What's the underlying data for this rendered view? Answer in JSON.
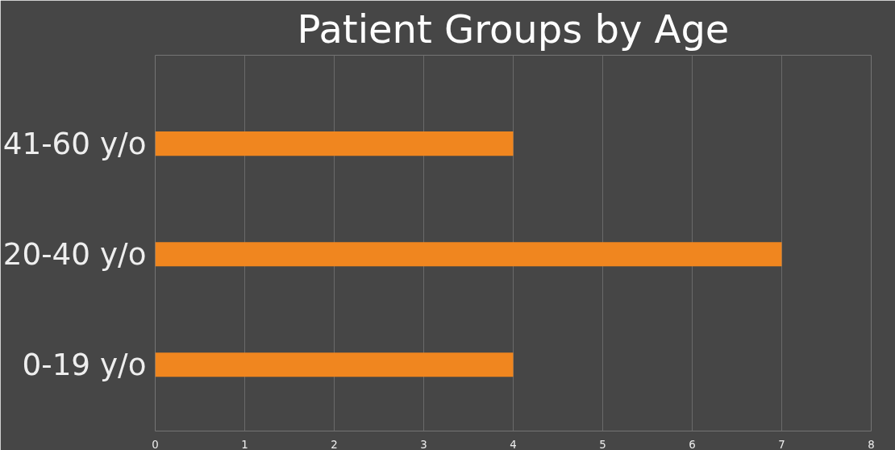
{
  "chart_data": {
    "type": "bar",
    "orientation": "horizontal",
    "title": "Patient Groups by Age",
    "categories": [
      "41-60 y/o",
      "20-40 y/o",
      "0-19 y/o"
    ],
    "values": [
      4,
      7,
      4
    ],
    "color": "#f0861f",
    "xlim": [
      0,
      8
    ],
    "xticks": [
      0,
      1,
      2,
      3,
      4,
      5,
      6,
      7,
      8
    ],
    "grid": "x"
  }
}
